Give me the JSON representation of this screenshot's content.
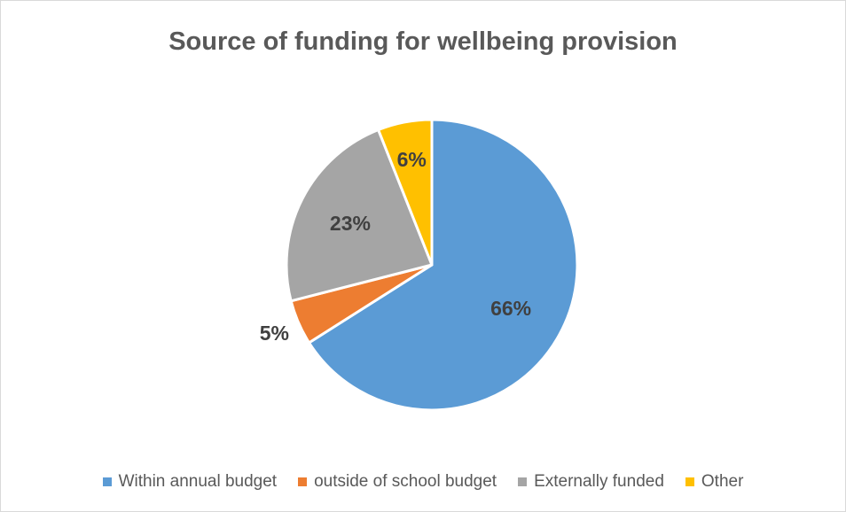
{
  "chart_data": {
    "type": "pie",
    "title": "Source of funding for wellbeing provision",
    "categories": [
      "Within annual budget",
      "outside of school budget",
      "Externally funded",
      "Other"
    ],
    "values": [
      66,
      5,
      23,
      6
    ],
    "labels": [
      "66%",
      "5%",
      "23%",
      "6%"
    ],
    "colors": [
      "#5b9bd5",
      "#ed7d31",
      "#a5a5a5",
      "#ffc000"
    ],
    "legend_position": "bottom",
    "start_angle": "12 o'clock",
    "direction": "clockwise"
  }
}
